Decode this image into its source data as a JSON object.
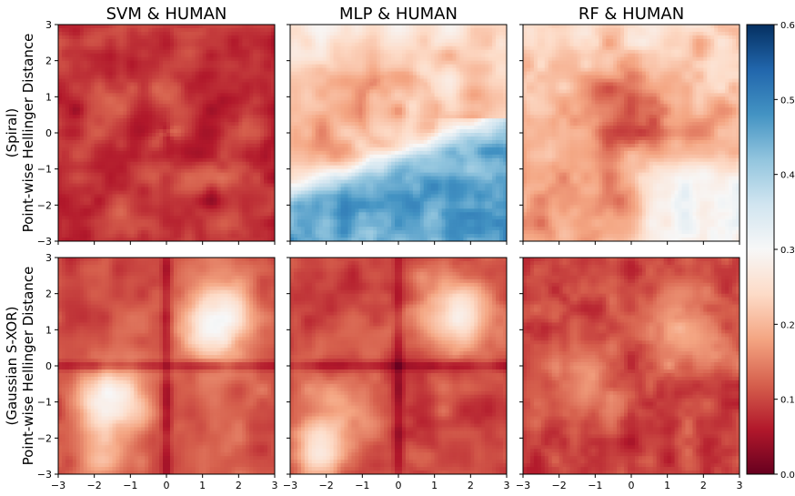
{
  "chart_data": {
    "type": "heatmap",
    "panel_titles": [
      "SVM & HUMAN",
      "MLP & HUMAN",
      "RF & HUMAN"
    ],
    "row_labels": [
      {
        "line1": "(Spiral)",
        "line2": "Point-wise Hellinger Distance"
      },
      {
        "line1": "(Gaussian S-XOR)",
        "line2": "Point-wise Hellinger Distance"
      }
    ],
    "x_range": [
      -3,
      3
    ],
    "y_range": [
      -3,
      3
    ],
    "x_ticks": [
      "−3",
      "−2",
      "−1",
      "0",
      "1",
      "2",
      "3"
    ],
    "y_ticks": [
      "3",
      "2",
      "1",
      "0",
      "−1",
      "−2",
      "−3"
    ],
    "colorbar": {
      "colormap": "RdBu",
      "range": [
        0.0,
        0.6
      ],
      "ticks": [
        "0.6",
        "0.5",
        "0.4",
        "0.3",
        "0.2",
        "0.1",
        "0.0"
      ],
      "low_color": "#67001f",
      "mid_color": "#f7f7f7",
      "high_color": "#053061"
    },
    "panels": [
      {
        "row": "Spiral",
        "pair": "SVM & HUMAN",
        "pattern": "spiral_svm",
        "typical_value": 0.08,
        "max_value": 0.2
      },
      {
        "row": "Spiral",
        "pair": "MLP & HUMAN",
        "pattern": "spiral_mlp",
        "typical_value": 0.2,
        "max_value": 0.55
      },
      {
        "row": "Spiral",
        "pair": "RF & HUMAN",
        "pattern": "spiral_rf",
        "typical_value": 0.15,
        "max_value": 0.35
      },
      {
        "row": "Gaussian S-XOR",
        "pair": "SVM & HUMAN",
        "pattern": "xor_svm",
        "typical_value": 0.12,
        "max_value": 0.35
      },
      {
        "row": "Gaussian S-XOR",
        "pair": "MLP & HUMAN",
        "pattern": "xor_mlp",
        "typical_value": 0.1,
        "max_value": 0.35
      },
      {
        "row": "Gaussian S-XOR",
        "pair": "RF & HUMAN",
        "pattern": "xor_rf",
        "typical_value": 0.08,
        "max_value": 0.28
      }
    ]
  }
}
